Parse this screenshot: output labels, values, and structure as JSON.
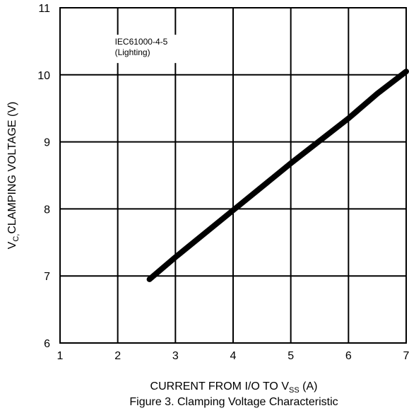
{
  "chart_data": {
    "type": "line",
    "title": "",
    "caption": "Figure 3. Clamping Voltage Characteristic",
    "xlabel": {
      "prefix": "CURRENT FROM I/O TO V",
      "subscript": "SS",
      "suffix": " (A)"
    },
    "ylabel": {
      "prefix": "V",
      "subscript": "C,",
      "suffix": "CLAMPING VOLTAGE (V)"
    },
    "xlim": [
      1,
      7
    ],
    "ylim": [
      6,
      11
    ],
    "x_ticks": [
      1,
      2,
      3,
      4,
      5,
      6,
      7
    ],
    "y_ticks": [
      6,
      7,
      8,
      9,
      10,
      11
    ],
    "grid": true,
    "legend": "none",
    "series": [
      {
        "color": "#000000",
        "x": [
          2.55,
          3.0,
          4.0,
          5.0,
          6.0,
          6.5,
          7.0
        ],
        "y": [
          6.95,
          7.28,
          7.98,
          8.68,
          9.35,
          9.72,
          10.05
        ]
      }
    ],
    "annotations": [
      {
        "lines": [
          "IEC61000-4-5",
          "(Lighting)"
        ],
        "x": 1.95,
        "y": 10.45
      }
    ],
    "colors": {
      "line": "#000000",
      "grid": "#000000",
      "background": "#ffffff"
    }
  }
}
